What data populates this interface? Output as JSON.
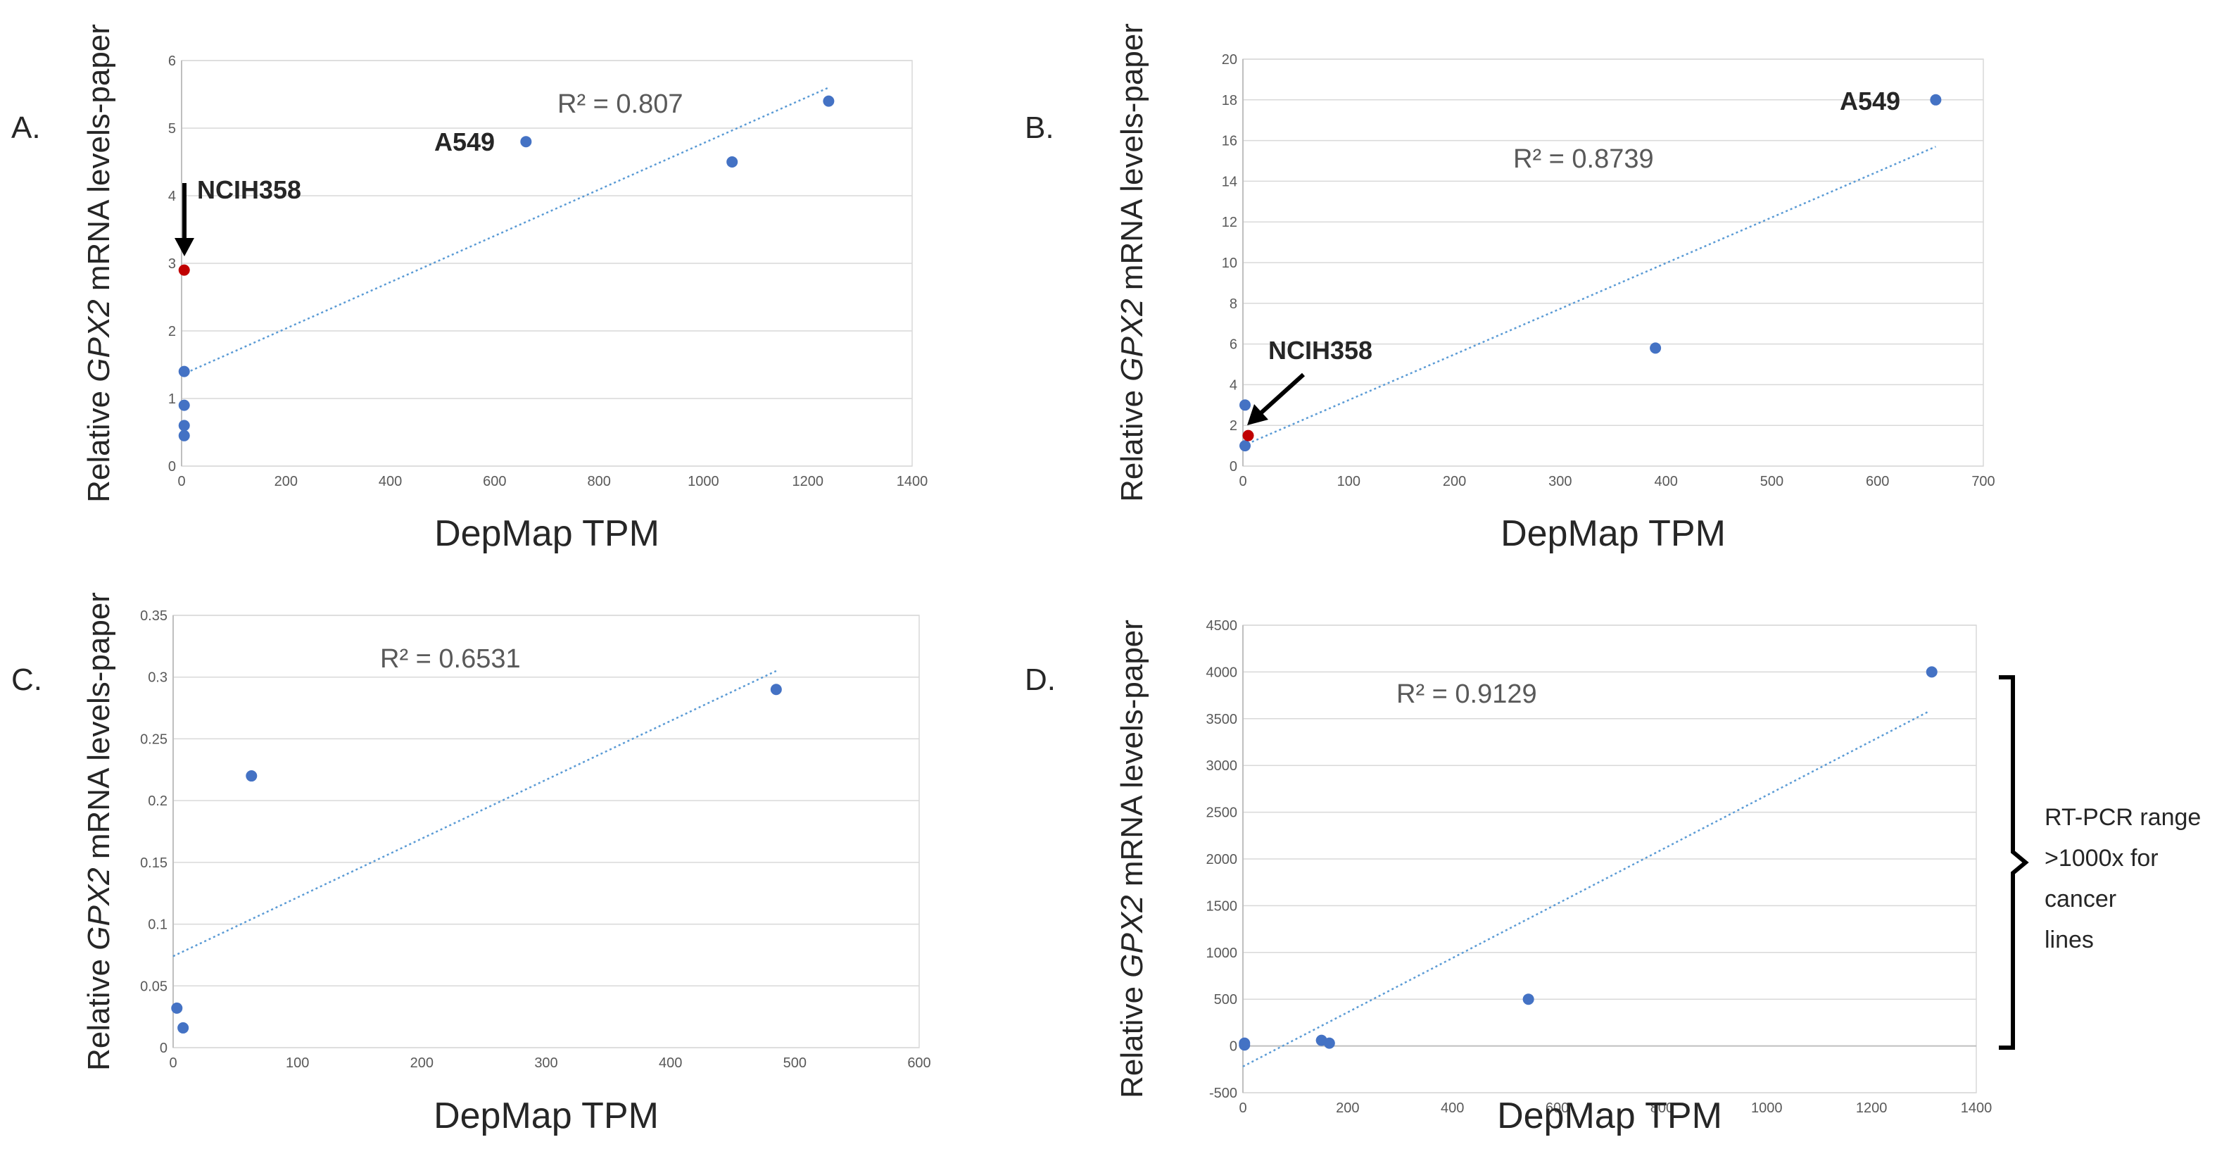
{
  "chart_data": [
    {
      "panel": "A.",
      "type": "scatter",
      "xlabel": "DepMap TPM",
      "ylabel": {
        "pre": "Relative ",
        "gene": "GPX2",
        "post": " mRNA levels-paper"
      },
      "xlim": [
        0,
        1400
      ],
      "ylim": [
        0,
        6
      ],
      "xticks": [
        "0",
        "200",
        "400",
        "600",
        "800",
        "1000",
        "1200",
        "1400"
      ],
      "yticks": [
        "0",
        "1",
        "2",
        "3",
        "4",
        "5",
        "6"
      ],
      "points": [
        {
          "x": 5,
          "y": 0.45,
          "color": "#4472C4"
        },
        {
          "x": 5,
          "y": 0.6,
          "color": "#4472C4"
        },
        {
          "x": 5,
          "y": 0.9,
          "color": "#4472C4"
        },
        {
          "x": 5,
          "y": 1.4,
          "color": "#4472C4"
        },
        {
          "x": 5,
          "y": 2.9,
          "color": "#C00000"
        },
        {
          "x": 660,
          "y": 4.8,
          "color": "#4472C4"
        },
        {
          "x": 1055,
          "y": 4.5,
          "color": "#4472C4"
        },
        {
          "x": 1240,
          "y": 5.4,
          "color": "#4472C4"
        }
      ],
      "trendline": {
        "x": [
          0,
          1240
        ],
        "y": [
          1.35,
          5.6
        ]
      },
      "r_squared": "R² = 0.807",
      "annotations": [
        "A549",
        "NCIH358"
      ]
    },
    {
      "panel": "B.",
      "type": "scatter",
      "xlabel": "DepMap TPM",
      "ylabel": {
        "pre": "Relative ",
        "gene": "GPX2",
        "post": " mRNA levels-paper"
      },
      "xlim": [
        0,
        700
      ],
      "ylim": [
        0,
        20
      ],
      "xticks": [
        "0",
        "100",
        "200",
        "300",
        "400",
        "500",
        "600",
        "700"
      ],
      "yticks": [
        "0",
        "2",
        "4",
        "6",
        "8",
        "10",
        "12",
        "14",
        "16",
        "18",
        "20"
      ],
      "points": [
        {
          "x": 2,
          "y": 1.0,
          "color": "#4472C4"
        },
        {
          "x": 2,
          "y": 3.0,
          "color": "#4472C4"
        },
        {
          "x": 5,
          "y": 1.5,
          "color": "#C00000"
        },
        {
          "x": 390,
          "y": 5.8,
          "color": "#4472C4"
        },
        {
          "x": 655,
          "y": 18.0,
          "color": "#4472C4"
        }
      ],
      "trendline": {
        "x": [
          0,
          655
        ],
        "y": [
          1.0,
          15.7
        ]
      },
      "r_squared": "R² = 0.8739",
      "annotations": [
        "A549",
        "NCIH358"
      ]
    },
    {
      "panel": "C.",
      "type": "scatter",
      "xlabel": "DepMap TPM",
      "ylabel": {
        "pre": "Relative ",
        "gene": "GPX2",
        "post": " mRNA levels-paper"
      },
      "xlim": [
        0,
        600
      ],
      "ylim": [
        0,
        0.35
      ],
      "xticks": [
        "0",
        "100",
        "200",
        "300",
        "400",
        "500",
        "600"
      ],
      "yticks": [
        "0",
        "0.05",
        "0.1",
        "0.15",
        "0.2",
        "0.25",
        "0.3",
        "0.35"
      ],
      "points": [
        {
          "x": 3,
          "y": 0.032,
          "color": "#4472C4"
        },
        {
          "x": 8,
          "y": 0.016,
          "color": "#4472C4"
        },
        {
          "x": 63,
          "y": 0.22,
          "color": "#4472C4"
        },
        {
          "x": 485,
          "y": 0.29,
          "color": "#4472C4"
        }
      ],
      "trendline": {
        "x": [
          0,
          485
        ],
        "y": [
          0.074,
          0.305
        ]
      },
      "r_squared": "R² = 0.6531",
      "annotations": []
    },
    {
      "panel": "D.",
      "type": "scatter",
      "xlabel": "DepMap TPM",
      "ylabel": {
        "pre": "Relative ",
        "gene": "GPX2",
        "post": " mRNA levels-paper"
      },
      "xlim": [
        0,
        1400
      ],
      "ylim": [
        -500,
        4500
      ],
      "xticks": [
        "0",
        "200",
        "400",
        "600",
        "800",
        "1000",
        "1200",
        "1400"
      ],
      "yticks": [
        "-500",
        "0",
        "500",
        "1000",
        "1500",
        "2000",
        "2500",
        "3000",
        "3500",
        "4000",
        "4500"
      ],
      "points": [
        {
          "x": 3,
          "y": 10,
          "color": "#4472C4"
        },
        {
          "x": 3,
          "y": 30,
          "color": "#4472C4"
        },
        {
          "x": 150,
          "y": 60,
          "color": "#4472C4"
        },
        {
          "x": 165,
          "y": 30,
          "color": "#4472C4"
        },
        {
          "x": 545,
          "y": 500,
          "color": "#4472C4"
        },
        {
          "x": 1315,
          "y": 4000,
          "color": "#4472C4"
        }
      ],
      "trendline": {
        "x": [
          0,
          1310
        ],
        "y": [
          -220,
          3580
        ]
      },
      "r_squared": "R² = 0.9129",
      "annotations": []
    }
  ],
  "note_text": [
    "RT-PCR range",
    ">1000x for",
    "cancer",
    "lines"
  ]
}
